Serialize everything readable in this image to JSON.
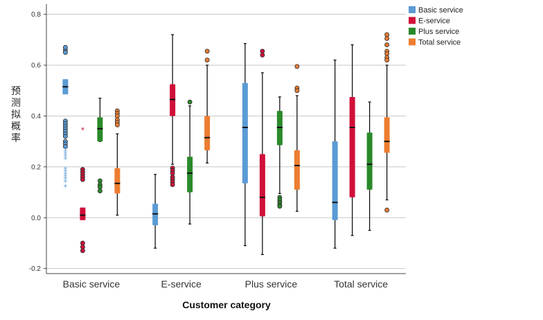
{
  "chart_data": {
    "type": "boxplot",
    "title": "",
    "xlabel": "Customer category",
    "ylabel": "预测拟概率",
    "ylim": [
      -0.22,
      0.84
    ],
    "yticks": [
      -0.2,
      0.0,
      0.2,
      0.4,
      0.6,
      0.8
    ],
    "ytick_labels": [
      "-0.2",
      "0.0",
      "0.2",
      "0.4",
      "0.6",
      "0.8"
    ],
    "grid": "horizontal",
    "legend_position": "top-right",
    "categories": [
      "Basic service",
      "E-service",
      "Plus service",
      "Total service"
    ],
    "series": [
      {
        "name": "Basic service",
        "color": "#5b9bd5",
        "boxes": [
          {
            "whisker_low": 0.485,
            "q1": 0.485,
            "median": 0.515,
            "q3": 0.545,
            "whisker_high": 0.545,
            "outliers": [
              0.66,
              0.67,
              0.65,
              0.38,
              0.37,
              0.36,
              0.35,
              0.34,
              0.33,
              0.32,
              0.3,
              0.29,
              0.28
            ],
            "extremes": [
              0.27,
              0.26,
              0.25,
              0.24,
              0.23,
              0.19,
              0.18,
              0.17,
              0.16,
              0.15,
              0.14,
              0.12
            ]
          },
          {
            "whisker_low": -0.12,
            "q1": -0.03,
            "median": 0.015,
            "q3": 0.055,
            "whisker_high": 0.17,
            "outliers": [],
            "extremes": []
          },
          {
            "whisker_low": -0.11,
            "q1": 0.135,
            "median": 0.355,
            "q3": 0.53,
            "whisker_high": 0.685,
            "outliers": [],
            "extremes": []
          },
          {
            "whisker_low": -0.12,
            "q1": -0.01,
            "median": 0.06,
            "q3": 0.3,
            "whisker_high": 0.62,
            "outliers": [],
            "extremes": []
          }
        ]
      },
      {
        "name": "E-service",
        "color": "#d0103a",
        "boxes": [
          {
            "whisker_low": -0.01,
            "q1": -0.01,
            "median": 0.01,
            "q3": 0.04,
            "whisker_high": 0.04,
            "outliers": [
              0.19,
              0.18,
              0.17,
              0.16,
              0.15,
              -0.1,
              -0.115,
              -0.13
            ],
            "extremes": [
              0.345
            ]
          },
          {
            "whisker_low": 0.21,
            "q1": 0.4,
            "median": 0.465,
            "q3": 0.525,
            "whisker_high": 0.72,
            "outliers": [
              0.195,
              0.185,
              0.175,
              0.16,
              0.15,
              0.14,
              0.13
            ],
            "extremes": []
          },
          {
            "whisker_low": -0.145,
            "q1": 0.005,
            "median": 0.08,
            "q3": 0.25,
            "whisker_high": 0.57,
            "outliers": [
              0.655,
              0.64
            ],
            "extremes": []
          },
          {
            "whisker_low": -0.07,
            "q1": 0.08,
            "median": 0.355,
            "q3": 0.475,
            "whisker_high": 0.68,
            "outliers": [],
            "extremes": []
          }
        ]
      },
      {
        "name": "Plus service",
        "color": "#2a8a2a",
        "boxes": [
          {
            "whisker_low": 0.3,
            "q1": 0.3,
            "median": 0.35,
            "q3": 0.395,
            "whisker_high": 0.47,
            "outliers": [
              0.145,
              0.13,
              0.12,
              0.105
            ],
            "extremes": []
          },
          {
            "whisker_low": -0.025,
            "q1": 0.1,
            "median": 0.175,
            "q3": 0.24,
            "whisker_high": 0.44,
            "outliers": [
              0.455
            ],
            "extremes": []
          },
          {
            "whisker_low": 0.095,
            "q1": 0.285,
            "median": 0.355,
            "q3": 0.42,
            "whisker_high": 0.475,
            "outliers": [
              0.08,
              0.07,
              0.06,
              0.05,
              0.045
            ],
            "extremes": []
          },
          {
            "whisker_low": -0.05,
            "q1": 0.11,
            "median": 0.21,
            "q3": 0.335,
            "whisker_high": 0.455,
            "outliers": [],
            "extremes": []
          }
        ]
      },
      {
        "name": "Total service",
        "color": "#ed7d31",
        "boxes": [
          {
            "whisker_low": 0.01,
            "q1": 0.095,
            "median": 0.135,
            "q3": 0.195,
            "whisker_high": 0.33,
            "outliers": [
              0.42,
              0.41,
              0.4,
              0.385,
              0.375,
              0.365
            ],
            "extremes": []
          },
          {
            "whisker_low": 0.215,
            "q1": 0.265,
            "median": 0.315,
            "q3": 0.4,
            "whisker_high": 0.6,
            "outliers": [
              0.655,
              0.62
            ],
            "extremes": []
          },
          {
            "whisker_low": 0.025,
            "q1": 0.11,
            "median": 0.205,
            "q3": 0.265,
            "whisker_high": 0.48,
            "outliers": [
              0.595,
              0.51,
              0.5
            ],
            "extremes": []
          },
          {
            "whisker_low": 0.07,
            "q1": 0.255,
            "median": 0.3,
            "q3": 0.395,
            "whisker_high": 0.6,
            "outliers": [
              0.72,
              0.705,
              0.68,
              0.655,
              0.645,
              0.63,
              0.62,
              0.03
            ],
            "extremes": []
          }
        ]
      }
    ]
  }
}
